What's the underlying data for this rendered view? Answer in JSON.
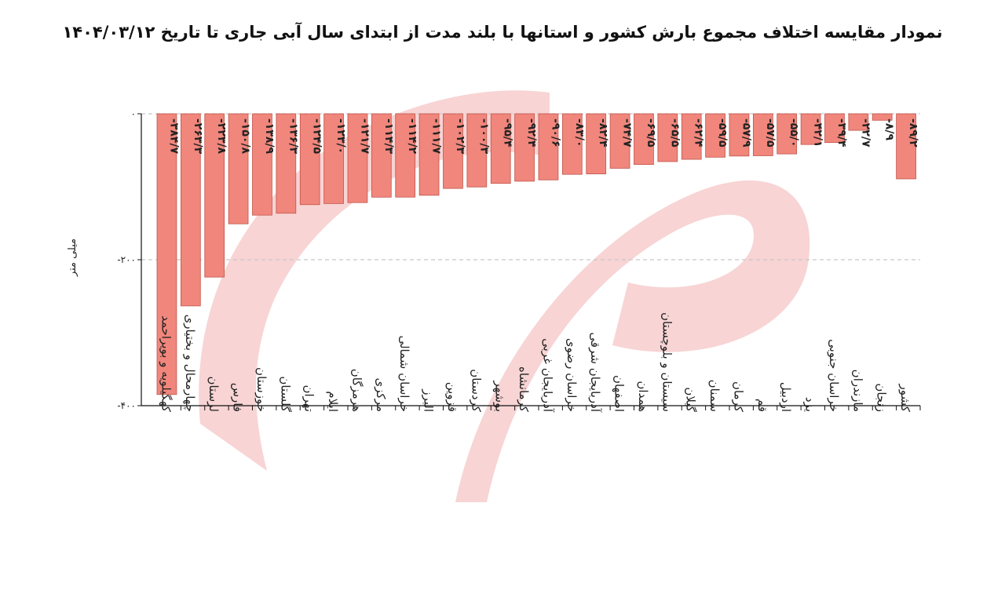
{
  "chart_data": {
    "type": "bar",
    "title": "نمودار مقایسه اختلاف مجموع بارش کشور و استانها با بلند مدت از ابتدای سال آبی جاری تا تاریخ ۱۴۰۴/۰۳/۱۲",
    "ylabel": "میلی متر",
    "xlabel": "",
    "ylim": [
      -400,
      0
    ],
    "yticks": [
      0,
      -200,
      -400
    ],
    "ytick_labels": [
      "۰",
      "-۲۰۰",
      "-۴۰۰"
    ],
    "grid": true,
    "colors": {
      "bar": "#f0867c",
      "bar_stroke": "#c2554b",
      "watermark": "#f8d4d4"
    },
    "categories": [
      "کهگیلویه و بویراحمد",
      "چهارمحال و بختیاری",
      "لرستان",
      "فارس",
      "خوزستان",
      "گلستان",
      "تهران",
      "ایلام",
      "هرمزگان",
      "مرکزی",
      "خراسان شمالی",
      "البرز",
      "قزوین",
      "کردستان",
      "بوشهر",
      "کرمانشاه",
      "آذربایجان غربی",
      "خراسان رضوی",
      "آذربایجان شرقی",
      "اصفهان",
      "همدان",
      "سیستان و بلوچستان",
      "گیلان",
      "سمنان",
      "کرمان",
      "قم",
      "اردبیل",
      "یزد",
      "خراسان جنوبی",
      "مازندران",
      "زنجان",
      "کشور"
    ],
    "values": [
      -384.7,
      -263.3,
      -223.8,
      -150.8,
      -138.9,
      -136.3,
      -124.5,
      -123.0,
      -121.7,
      -114.3,
      -114.2,
      -111.7,
      -102.3,
      -100.3,
      -95.4,
      -92.4,
      -90.6,
      -83.0,
      -82.4,
      -74.7,
      -69.5,
      -65.5,
      -62.4,
      -59.5,
      -57.9,
      -57.5,
      -55.0,
      -42.1,
      -39.4,
      -22.7,
      -8.9,
      -89.2
    ],
    "value_labels": [
      "-۳۸۴/۷",
      "-۲۶۳/۳",
      "-۲۲۳/۸",
      "-۱۵۰/۸",
      "-۱۳۸/۹",
      "-۱۳۶/۳",
      "-۱۲۴/۵",
      "-۱۲۳/۰",
      "-۱۲۱/۷",
      "-۱۱۴/۳",
      "-۱۱۴/۲",
      "-۱۱۱/۷",
      "-۱۰۲/۳",
      "-۱۰۰/۳",
      "-۹۵/۴",
      "-۹۲/۴",
      "-۹۰/۶",
      "-۸۳/۰",
      "-۸۲/۴",
      "-۷۴/۷",
      "-۶۹/۵",
      "-۶۵/۵",
      "-۶۲/۴",
      "-۵۹/۵",
      "-۵۷/۹",
      "-۵۷/۵",
      "-۵۵/۰",
      "-۴۲/۱",
      "-۳۹/۴",
      "-۲۲/۷",
      "-۸/۹",
      "-۸۹/۲"
    ]
  }
}
